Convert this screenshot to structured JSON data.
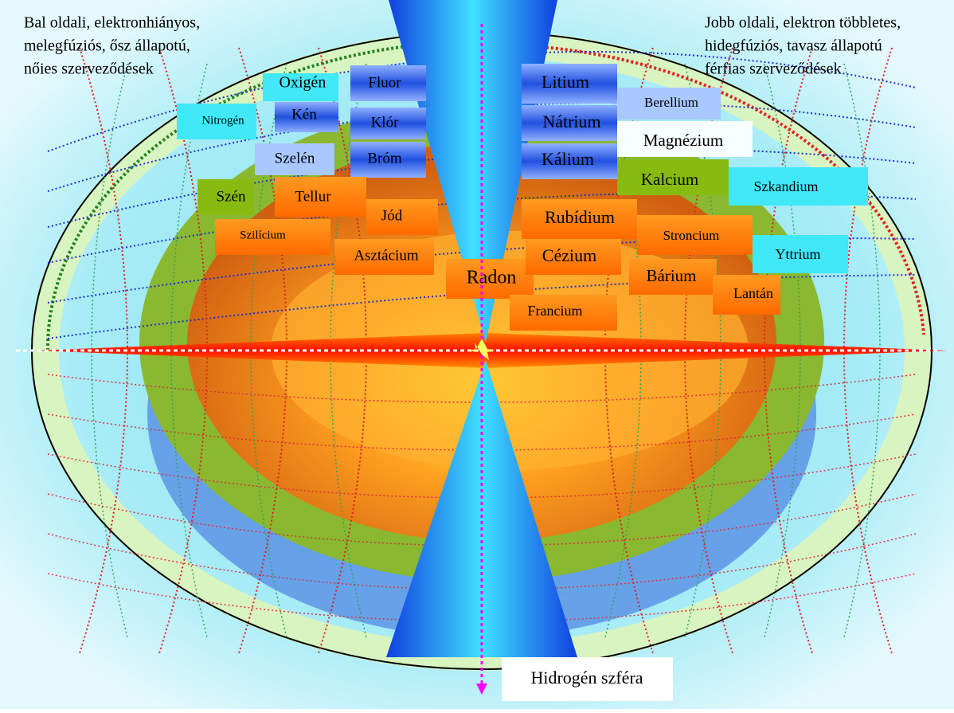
{
  "left_note": [
    "Bal oldali, elektronhiányos,",
    "melegfúziós, ősz állapotú,",
    "nőies szerveződések"
  ],
  "right_note": [
    "Jobb oldali, elektron többletes,",
    "hidegfúziós, tavasz állapotú",
    "férfias szerveződések"
  ],
  "nodes": [
    {
      "label": "Oxigén"
    },
    {
      "label": "Fluor"
    },
    {
      "label": "Nitrogén"
    },
    {
      "label": "Kén"
    },
    {
      "label": "Klór"
    },
    {
      "label": "Szelén"
    },
    {
      "label": "Bróm"
    },
    {
      "label": "Szén"
    },
    {
      "label": "Tellur"
    },
    {
      "label": "Jód"
    },
    {
      "label": "Szilícium"
    },
    {
      "label": "Asztácium"
    },
    {
      "label": "Radon"
    },
    {
      "label": "Litium"
    },
    {
      "label": "Nátrium"
    },
    {
      "label": "Kálium"
    },
    {
      "label": "Rubídium"
    },
    {
      "label": "Cézium"
    },
    {
      "label": "Francium"
    },
    {
      "label": "Berellium"
    },
    {
      "label": "Magnézium"
    },
    {
      "label": "Kalcium"
    },
    {
      "label": "Szkandium"
    },
    {
      "label": "Stroncium"
    },
    {
      "label": "Yttrium"
    },
    {
      "label": "Bárium"
    },
    {
      "label": "Lantán"
    }
  ],
  "bottom_label": "Hidrogén szféra"
}
